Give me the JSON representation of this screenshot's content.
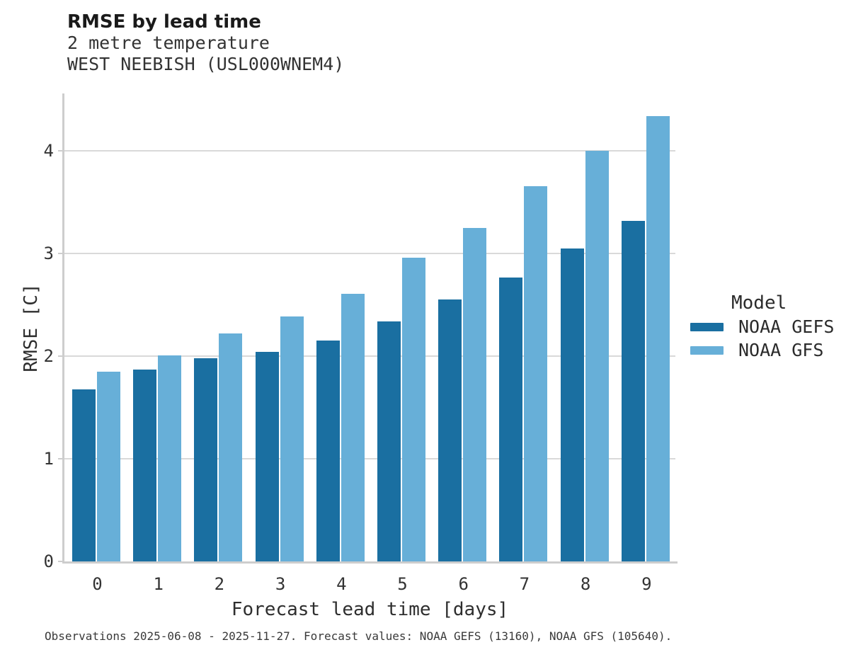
{
  "header": {
    "title": "RMSE by lead time",
    "subtitle_line1": "2 metre temperature",
    "subtitle_line2": "WEST NEEBISH (USL000WNEM4)"
  },
  "chart_data": {
    "type": "bar",
    "title": "RMSE by lead time",
    "subtitle": [
      "2 metre temperature",
      "WEST NEEBISH (USL000WNEM4)"
    ],
    "categories": [
      "0",
      "1",
      "2",
      "3",
      "4",
      "5",
      "6",
      "7",
      "8",
      "9"
    ],
    "series": [
      {
        "name": "NOAA GEFS",
        "color": "#1a6fa1",
        "values": [
          1.68,
          1.87,
          1.98,
          2.04,
          2.15,
          2.34,
          2.55,
          2.77,
          3.05,
          3.32
        ]
      },
      {
        "name": "NOAA GFS",
        "color": "#67afd8",
        "values": [
          1.85,
          2.01,
          2.22,
          2.39,
          2.61,
          2.96,
          3.25,
          3.66,
          4.0,
          4.34
        ]
      }
    ],
    "xlabel": "Forecast lead time [days]",
    "ylabel": "RMSE [C]",
    "ylim": [
      0,
      4.56
    ],
    "yticks": [
      0,
      1,
      2,
      3,
      4
    ],
    "grid": true,
    "legend_title": "Model",
    "legend_position": "right"
  },
  "legend": {
    "title": "Model",
    "items": [
      {
        "label": "NOAA GEFS",
        "color": "#1a6fa1"
      },
      {
        "label": "NOAA GFS",
        "color": "#67afd8"
      }
    ]
  },
  "footer": {
    "text": "Observations 2025-06-08 - 2025-11-27. Forecast values: NOAA GEFS (13160), NOAA GFS (105640)."
  },
  "colors": {
    "gefs_bar": "#1a6fa1",
    "gfs_bar": "#67afd8",
    "gridline": "#d9d9d9",
    "axis": "#cdcdcd"
  }
}
